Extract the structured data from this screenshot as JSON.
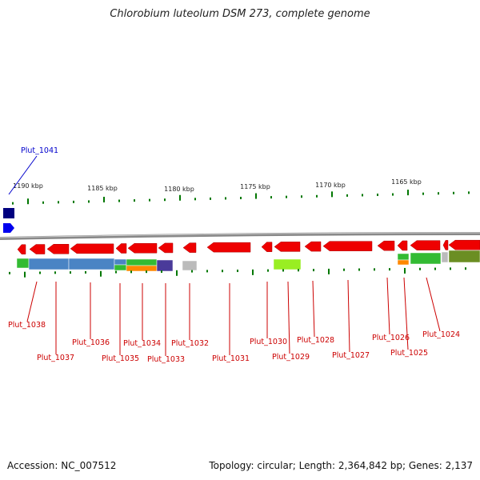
{
  "title": "Chlorobium luteolum DSM 273, complete genome",
  "footer": {
    "accession": "Accession: NC_007512",
    "topology": "Topology: circular; Length: 2,364,842 bp; Genes: 2,137"
  },
  "scale_labels": [
    "1190 kbp",
    "1185 kbp",
    "1180 kbp",
    "1175 kbp",
    "1170 kbp",
    "1165 kbp"
  ],
  "colors": {
    "highlight_label": "#0000cc",
    "gene_label": "#cc0000",
    "gene_fill": "#ee0000",
    "tick": "#007700",
    "backbone": "#888888"
  },
  "gene_labels": [
    "Plut_1041",
    "Plut_1038",
    "Plut_1037",
    "Plut_1036",
    "Plut_1035",
    "Plut_1034",
    "Plut_1033",
    "Plut_1032",
    "Plut_1031",
    "Plut_1030",
    "Plut_1029",
    "Plut_1028",
    "Plut_1027",
    "Plut_1026",
    "Plut_1025",
    "Plut_1024"
  ]
}
